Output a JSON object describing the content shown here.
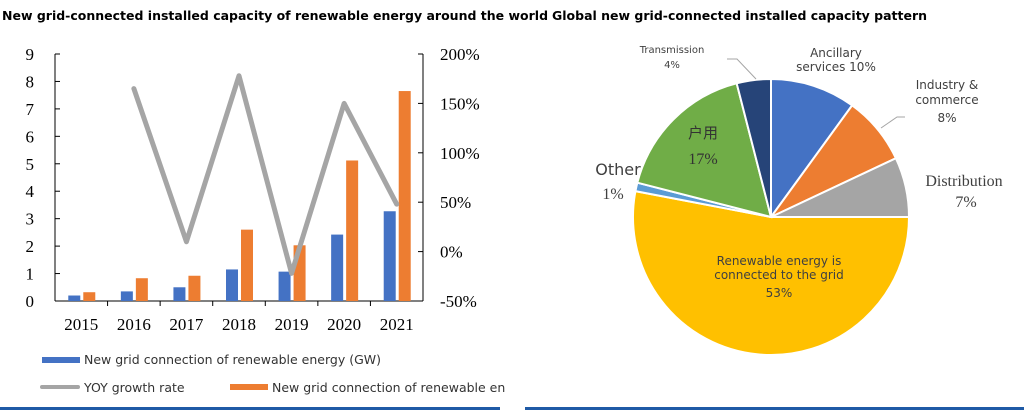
{
  "chart_data": [
    {
      "type": "bar",
      "title": "New grid-connected installed capacity of renewable energy around the world",
      "categories": [
        "2015",
        "2016",
        "2017",
        "2018",
        "2019",
        "2020",
        "2021"
      ],
      "ylim": [
        0,
        9
      ],
      "yticks": [
        "0",
        "1",
        "2",
        "3",
        "4",
        "5",
        "6",
        "7",
        "8",
        "9"
      ],
      "y2lim": [
        -50,
        200
      ],
      "y2ticks": [
        "-50%",
        "0%",
        "50%",
        "100%",
        "150%",
        "200%"
      ],
      "series": [
        {
          "name": "New grid connection of renewable energy (GW)",
          "type": "bar",
          "color": "#4472c4",
          "values": [
            0.2,
            0.35,
            0.5,
            1.15,
            1.07,
            2.42,
            3.27
          ]
        },
        {
          "name": "New grid connection of renewable en",
          "type": "bar",
          "color": "#ed7d31",
          "values": [
            0.32,
            0.83,
            0.92,
            2.6,
            2.03,
            5.12,
            7.65
          ]
        },
        {
          "name": "YOY growth rate",
          "type": "line",
          "axis": "right",
          "color": "#a5a5a5",
          "values": [
            null,
            165,
            10,
            178,
            -22,
            150,
            48
          ]
        }
      ],
      "legend": "bottom"
    },
    {
      "type": "pie",
      "title": "Global new grid-connected installed capacity pattern",
      "slices": [
        {
          "label": "Ancillary services",
          "pct": "10%",
          "value": 10,
          "color": "#4472c4"
        },
        {
          "label": "Industry & commerce",
          "pct": "8%",
          "value": 8,
          "color": "#ed7d31"
        },
        {
          "label": "Distribution",
          "pct": "7%",
          "value": 7,
          "color": "#a5a5a5"
        },
        {
          "label": "Renewable energy is connected to the grid",
          "pct": "53%",
          "value": 53,
          "color": "#ffc000"
        },
        {
          "label": "Other",
          "pct": "1%",
          "value": 1,
          "color": "#5b9bd5"
        },
        {
          "label": "户用",
          "pct": "17%",
          "value": 17,
          "color": "#70ad47"
        },
        {
          "label": "Transmission",
          "pct": "4%",
          "value": 4,
          "color": "#264478"
        }
      ]
    }
  ]
}
